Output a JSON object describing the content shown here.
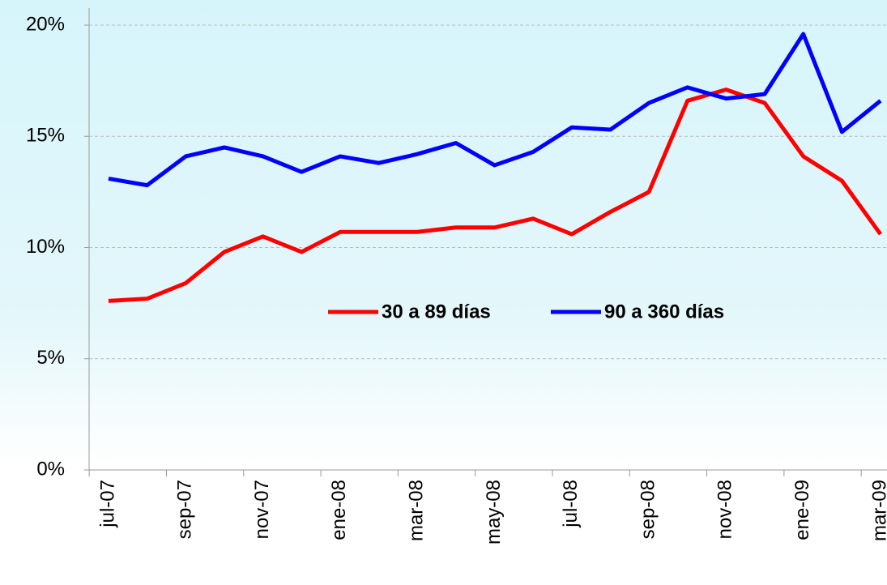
{
  "chart_data": {
    "type": "line",
    "categories": [
      "jul-07",
      null,
      "sep-07",
      null,
      "nov-07",
      null,
      "ene-08",
      null,
      "mar-08",
      null,
      "may-08",
      null,
      "jul-08",
      null,
      "sep-08",
      null,
      "nov-08",
      null,
      "ene-09",
      null,
      "mar-09"
    ],
    "series": [
      {
        "name": "30 a 89 días",
        "color": "#ff0000",
        "values": [
          7.6,
          7.7,
          8.4,
          9.8,
          10.5,
          9.8,
          10.7,
          10.7,
          10.7,
          10.9,
          10.9,
          11.3,
          10.6,
          11.6,
          12.5,
          16.6,
          17.1,
          16.5,
          14.1,
          13.0,
          10.6
        ]
      },
      {
        "name": "90 a 360 días",
        "color": "#0000ff",
        "values": [
          13.1,
          12.8,
          14.1,
          14.5,
          14.1,
          13.4,
          14.1,
          13.8,
          14.2,
          14.7,
          13.7,
          14.3,
          15.4,
          15.3,
          16.5,
          17.2,
          16.7,
          16.9,
          19.6,
          15.2,
          16.6
        ]
      }
    ],
    "ylim": [
      0,
      20
    ],
    "yticks": [
      {
        "value": 0,
        "label": "0%"
      },
      {
        "value": 5,
        "label": "5%"
      },
      {
        "value": 10,
        "label": "10%"
      },
      {
        "value": 15,
        "label": "15%"
      },
      {
        "value": 20,
        "label": "20%"
      }
    ],
    "grid": true
  }
}
